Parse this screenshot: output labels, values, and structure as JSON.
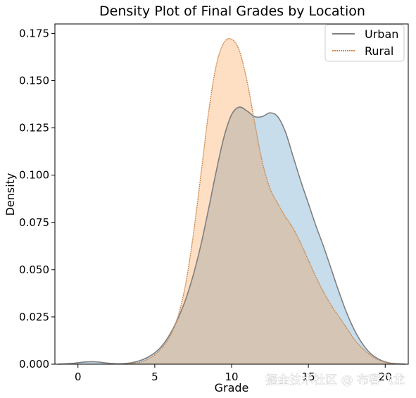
{
  "chart_data": {
    "type": "area",
    "title": "Density Plot of Final Grades by Location",
    "xlabel": "Grade",
    "ylabel": "Density",
    "xlim": [
      -1.5,
      21.5
    ],
    "ylim": [
      0,
      0.18
    ],
    "xticks": [
      "0",
      "5",
      "10",
      "15",
      "20"
    ],
    "yticks": [
      "0.000",
      "0.025",
      "0.050",
      "0.075",
      "0.100",
      "0.125",
      "0.150",
      "0.175"
    ],
    "grid": false,
    "legend_position": "top-right",
    "series": [
      {
        "name": "Urban",
        "line_color": "#7f7f7f",
        "fill_color": "#1f77b4",
        "fill_opacity": 0.25,
        "x": [
          -1.3,
          -0.5,
          0,
          0.5,
          1,
          1.5,
          2,
          2.5,
          3,
          3.5,
          4,
          4.5,
          5,
          5.5,
          6,
          6.5,
          7,
          7.5,
          8,
          8.5,
          9,
          9.5,
          10,
          10.5,
          11,
          11.5,
          12,
          12.5,
          13,
          13.5,
          14,
          14.5,
          15,
          15.5,
          16,
          16.5,
          17,
          17.5,
          18,
          18.5,
          19,
          19.5,
          20,
          20.5,
          21.3
        ],
        "y": [
          0.0,
          0.0003,
          0.0008,
          0.0012,
          0.0013,
          0.001,
          0.0005,
          0.0002,
          0.0003,
          0.0008,
          0.0018,
          0.0035,
          0.006,
          0.01,
          0.016,
          0.024,
          0.034,
          0.047,
          0.063,
          0.082,
          0.102,
          0.12,
          0.132,
          0.136,
          0.134,
          0.131,
          0.131,
          0.133,
          0.131,
          0.123,
          0.11,
          0.097,
          0.085,
          0.073,
          0.062,
          0.05,
          0.038,
          0.027,
          0.018,
          0.011,
          0.006,
          0.003,
          0.0012,
          0.0004,
          0.0
        ]
      },
      {
        "name": "Rural",
        "line_color": "#7f7f7f",
        "fill_color": "#ff7f0e",
        "fill_opacity": 0.25,
        "x": [
          3,
          3.5,
          4,
          4.5,
          5,
          5.5,
          6,
          6.5,
          7,
          7.5,
          8,
          8.5,
          9,
          9.5,
          10,
          10.5,
          11,
          11.5,
          12,
          12.5,
          13,
          13.5,
          14,
          14.5,
          15,
          15.5,
          16,
          16.5,
          17,
          17.5,
          18,
          18.5,
          19,
          19.5,
          20,
          20.5,
          21
        ],
        "y": [
          0.0,
          0.0003,
          0.001,
          0.0025,
          0.005,
          0.009,
          0.015,
          0.025,
          0.042,
          0.068,
          0.1,
          0.133,
          0.158,
          0.17,
          0.172,
          0.166,
          0.15,
          0.128,
          0.107,
          0.093,
          0.085,
          0.078,
          0.072,
          0.064,
          0.055,
          0.046,
          0.038,
          0.031,
          0.025,
          0.019,
          0.013,
          0.0085,
          0.005,
          0.0025,
          0.001,
          0.0003,
          0.0
        ]
      }
    ]
  },
  "watermark": "掘金技术社区 @ 布客飞龙"
}
